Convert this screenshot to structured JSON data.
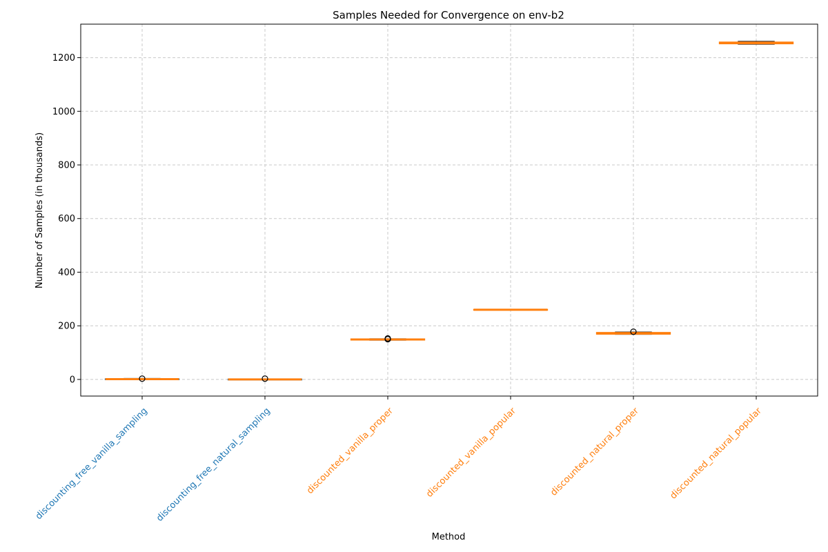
{
  "chart_data": {
    "type": "box",
    "title": "Samples Needed for Convergence on env-b2",
    "xlabel": "Method",
    "ylabel": "Number of Samples (in thousands)",
    "ylim": [
      -62,
      1325
    ],
    "yticks": [
      0,
      200,
      400,
      600,
      800,
      1000,
      1200
    ],
    "grid": true,
    "colors": {
      "discounting_free": "#1f77b4",
      "discounted": "#ff7f0e",
      "median": "#ff7f0e",
      "grid": "#c8c8c8",
      "box_edge": "#000000"
    },
    "categories": [
      "discounting_free_vanilla_sampling",
      "discounting_free_natural_sampling",
      "discounted_vanilla_proper",
      "discounted_vanilla_popular",
      "discounted_natural_proper",
      "discounted_natural_popular"
    ],
    "groups": [
      "discounting_free",
      "discounting_free",
      "discounted",
      "discounted",
      "discounted",
      "discounted"
    ],
    "boxes": [
      {
        "whislo": 0,
        "q1": 0,
        "median": 1,
        "q3": 2,
        "whishi": 4,
        "fliers": [
          3
        ]
      },
      {
        "whislo": 0,
        "q1": 0,
        "median": 0,
        "q3": 1,
        "whishi": 2,
        "fliers": [
          3
        ]
      },
      {
        "whislo": 146,
        "q1": 147,
        "median": 149,
        "q3": 151,
        "whishi": 152,
        "fliers": [
          153,
          150
        ]
      },
      {
        "whislo": 259,
        "q1": 260,
        "median": 260,
        "q3": 261,
        "whishi": 262,
        "fliers": []
      },
      {
        "whislo": 168,
        "q1": 169,
        "median": 172,
        "q3": 175,
        "whishi": 177,
        "fliers": [
          178
        ]
      },
      {
        "whislo": 1250,
        "q1": 1252,
        "median": 1255,
        "q3": 1258,
        "whishi": 1261,
        "fliers": []
      }
    ]
  }
}
